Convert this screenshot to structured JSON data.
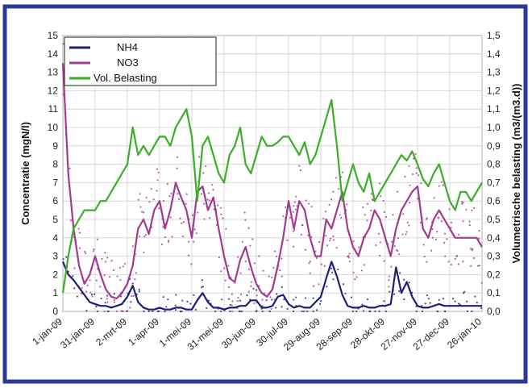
{
  "chart_data": {
    "type": "line",
    "ylabel": "Concentratie (mgN/l)",
    "y2label": "Volumetrische belasting (m3/(m3.d))",
    "ylim": [
      0,
      15
    ],
    "y2lim": [
      0,
      1.5
    ],
    "yticks": [
      "0",
      "1",
      "2",
      "3",
      "4",
      "5",
      "6",
      "7",
      "8",
      "9",
      "10",
      "11",
      "12",
      "13",
      "14",
      "15"
    ],
    "y2ticks": [
      "0,0",
      "0,1",
      "0,2",
      "0,3",
      "0,4",
      "0,5",
      "0,6",
      "0,7",
      "0,8",
      "0,9",
      "1,0",
      "1,1",
      "1,2",
      "1,3",
      "1,4",
      "1,5"
    ],
    "x_tick_labels": [
      "1-jan-09",
      "31-jan-09",
      "2-mrt-09",
      "1-apr-09",
      "1-mei-09",
      "31-mei-09",
      "30-jun-09",
      "30-jul-09",
      "29-aug-09",
      "28-sep-09",
      "28-okt-09",
      "27-nov-09",
      "27-dec-09",
      "26-jan-10"
    ],
    "grid": true,
    "legend_position": "top-left",
    "series": [
      {
        "name": "NH4",
        "axis": "left",
        "color": "#1f1f7a",
        "x": [
          0,
          5,
          10,
          15,
          20,
          25,
          30,
          35,
          40,
          45,
          50,
          55,
          60,
          65,
          70,
          75,
          80,
          85,
          90,
          95,
          100,
          105,
          110,
          115,
          120,
          125,
          130,
          135,
          140,
          145,
          150,
          155,
          160,
          165,
          170,
          175,
          180,
          185,
          190,
          195,
          200,
          205,
          210,
          215,
          220,
          225,
          230,
          235,
          240,
          245,
          250,
          255,
          260,
          265,
          270,
          275,
          280,
          285,
          290,
          295,
          300,
          305,
          310,
          315,
          320,
          325,
          330,
          335,
          340,
          345,
          350,
          355,
          360,
          365,
          370,
          375,
          380,
          385,
          390
        ],
        "y": [
          2.7,
          2.0,
          1.7,
          1.3,
          0.9,
          0.5,
          0.4,
          0.3,
          0.3,
          0.2,
          0.3,
          0.4,
          0.8,
          1.4,
          0.5,
          0.2,
          0.1,
          0.1,
          0.2,
          0.1,
          0.1,
          0.2,
          0.2,
          0.1,
          0.1,
          0.6,
          1.0,
          0.5,
          0.2,
          0.2,
          0.1,
          0.2,
          0.2,
          0.3,
          0.3,
          0.6,
          0.6,
          0.2,
          0.2,
          0.3,
          0.8,
          0.9,
          0.4,
          0.2,
          0.3,
          0.2,
          0.2,
          0.5,
          0.8,
          1.8,
          2.7,
          1.9,
          0.9,
          0.3,
          0.2,
          0.2,
          0.3,
          0.2,
          0.2,
          0.3,
          0.3,
          0.4,
          2.4,
          1.0,
          1.6,
          0.8,
          0.3,
          0.2,
          0.2,
          0.3,
          0.4,
          0.3,
          0.3,
          0.3,
          0.3,
          0.3,
          0.3,
          0.3,
          0.3
        ]
      },
      {
        "name": "NO3",
        "axis": "left",
        "color": "#a23b8f",
        "x": [
          0,
          5,
          10,
          15,
          20,
          25,
          30,
          35,
          40,
          45,
          50,
          55,
          60,
          65,
          70,
          75,
          80,
          85,
          90,
          95,
          100,
          105,
          110,
          115,
          120,
          125,
          130,
          135,
          140,
          145,
          150,
          155,
          160,
          165,
          170,
          175,
          180,
          185,
          190,
          195,
          200,
          205,
          210,
          215,
          220,
          225,
          230,
          235,
          240,
          245,
          250,
          255,
          260,
          265,
          270,
          275,
          280,
          285,
          290,
          295,
          300,
          305,
          310,
          315,
          320,
          325,
          330,
          335,
          340,
          345,
          350,
          355,
          360,
          365,
          370,
          375,
          380,
          385,
          390
        ],
        "y": [
          13.5,
          7.5,
          4.5,
          2.5,
          1.5,
          2.0,
          3.0,
          2.0,
          1.2,
          0.8,
          0.7,
          1.0,
          1.5,
          2.5,
          4.5,
          5.0,
          4.2,
          5.5,
          6.0,
          4.5,
          5.5,
          7.0,
          6.2,
          5.5,
          4.0,
          6.5,
          6.8,
          5.5,
          6.2,
          4.5,
          3.0,
          1.8,
          1.6,
          2.8,
          3.5,
          2.4,
          1.5,
          1.0,
          0.8,
          1.2,
          2.5,
          4.0,
          6.0,
          4.5,
          6.0,
          5.5,
          4.0,
          3.0,
          3.0,
          5.0,
          4.5,
          5.5,
          6.5,
          4.5,
          3.5,
          3.0,
          4.0,
          4.5,
          5.5,
          5.0,
          4.0,
          3.0,
          4.5,
          5.5,
          6.0,
          6.5,
          6.8,
          4.5,
          4.0,
          5.0,
          5.5,
          5.0,
          4.5,
          4.0,
          4.0,
          4.0,
          4.0,
          4.0,
          3.5
        ]
      },
      {
        "name": "Vol. Belasting",
        "axis": "right",
        "color": "#3bae27",
        "x": [
          0,
          5,
          10,
          15,
          20,
          25,
          30,
          35,
          40,
          45,
          50,
          55,
          60,
          65,
          70,
          75,
          80,
          85,
          90,
          95,
          100,
          105,
          110,
          115,
          120,
          125,
          130,
          135,
          140,
          145,
          150,
          155,
          160,
          165,
          170,
          175,
          180,
          185,
          190,
          195,
          200,
          205,
          210,
          215,
          220,
          225,
          230,
          235,
          240,
          245,
          250,
          255,
          260,
          265,
          270,
          275,
          280,
          285,
          290,
          295,
          300,
          305,
          310,
          315,
          320,
          325,
          330,
          335,
          340,
          345,
          350,
          355,
          360,
          365,
          370,
          375,
          380,
          385,
          390
        ],
        "y": [
          0.1,
          0.3,
          0.45,
          0.5,
          0.55,
          0.55,
          0.55,
          0.6,
          0.6,
          0.65,
          0.7,
          0.75,
          0.8,
          1.0,
          0.85,
          0.9,
          0.85,
          0.9,
          0.95,
          0.95,
          0.9,
          1.0,
          1.05,
          1.1,
          0.95,
          0.6,
          0.9,
          0.95,
          0.85,
          0.75,
          0.7,
          0.85,
          0.9,
          1.0,
          0.8,
          0.75,
          0.85,
          0.95,
          0.9,
          0.9,
          0.92,
          0.95,
          0.95,
          0.9,
          0.85,
          0.92,
          0.8,
          0.85,
          0.95,
          1.05,
          1.15,
          0.9,
          0.6,
          0.7,
          0.8,
          0.7,
          0.65,
          0.75,
          0.6,
          0.65,
          0.7,
          0.75,
          0.8,
          0.85,
          0.82,
          0.87,
          0.8,
          0.72,
          0.68,
          0.75,
          0.8,
          0.7,
          0.6,
          0.55,
          0.65,
          0.65,
          0.6,
          0.65,
          0.7
        ]
      }
    ]
  }
}
